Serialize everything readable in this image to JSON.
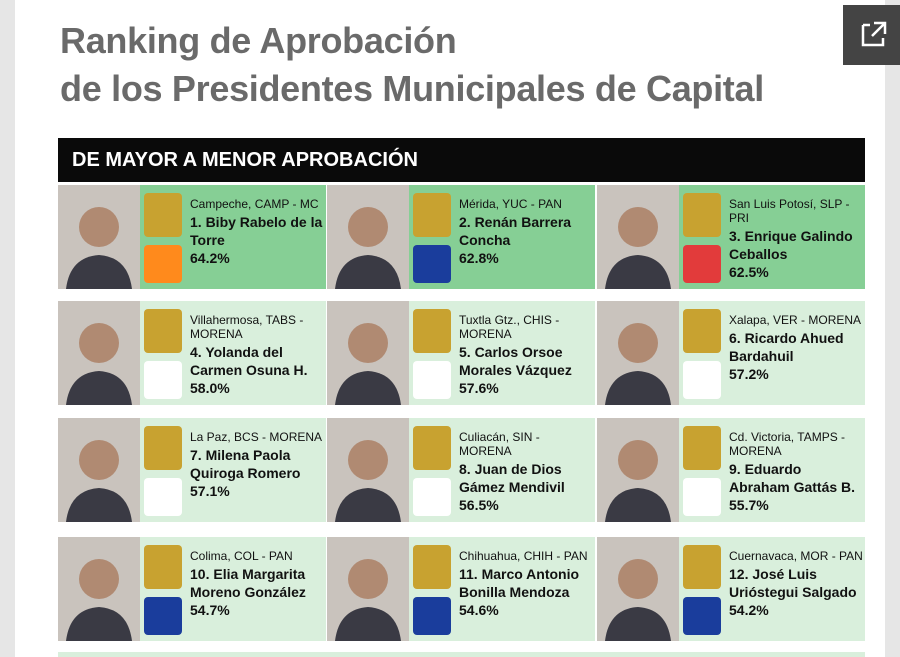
{
  "header": {
    "title_line1": "Ranking de Aprobación",
    "title_line2": "de los Presidentes Municipales de Capital"
  },
  "banner": "DE MAYOR A MENOR APROBACIÓN",
  "entries": [
    {
      "location": "Campeche, CAMP - MC",
      "name": "1. Biby Rabelo de la Torre",
      "approval": "64.2%"
    },
    {
      "location": "Mérida, YUC - PAN",
      "name": "2. Renán Barrera Concha",
      "approval": "62.8%"
    },
    {
      "location": "San Luis Potosí, SLP - PRI",
      "name": "3. Enrique Galindo Ceballos",
      "approval": "62.5%"
    },
    {
      "location": "Villahermosa, TABS - MORENA",
      "name": "4. Yolanda del Carmen Osuna H.",
      "approval": "58.0%"
    },
    {
      "location": "Tuxtla Gtz., CHIS - MORENA",
      "name": "5. Carlos Orsoe Morales Vázquez",
      "approval": "57.6%"
    },
    {
      "location": "Xalapa, VER - MORENA",
      "name": "6. Ricardo Ahued Bardahuil",
      "approval": "57.2%"
    },
    {
      "location": "La Paz, BCS - MORENA",
      "name": "7. Milena Paola Quiroga Romero",
      "approval": "57.1%"
    },
    {
      "location": "Culiacán, SIN - MORENA",
      "name": "8. Juan de Dios Gámez Mendivil",
      "approval": "56.5%"
    },
    {
      "location": "Cd. Victoria, TAMPS - MORENA",
      "name": "9. Eduardo Abraham Gattás B.",
      "approval": "55.7%"
    },
    {
      "location": "Colima, COL - PAN",
      "name": "10. Elia Margarita Moreno González",
      "approval": "54.7%"
    },
    {
      "location": "Chihuahua, CHIH - PAN",
      "name": "11. Marco Antonio Bonilla Mendoza",
      "approval": "54.6%"
    },
    {
      "location": "Cuernavaca, MOR - PAN",
      "name": "12. José Luis Urióstegui Salgado",
      "approval": "54.2%"
    }
  ]
}
